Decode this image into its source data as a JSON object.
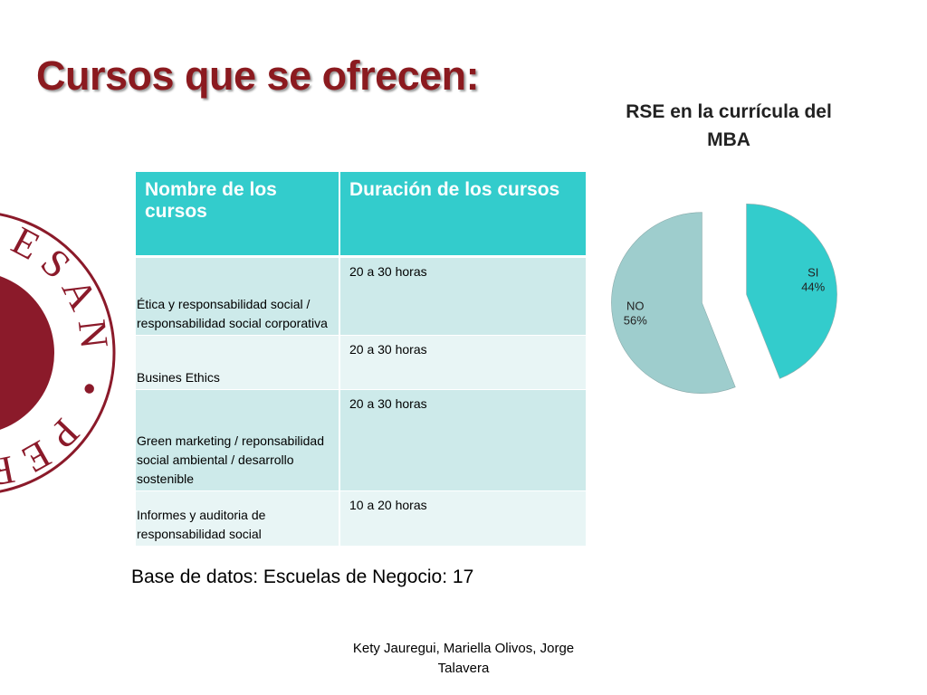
{
  "title": "Cursos que se ofrecen:",
  "logo_text": "ESAN • PERÚ •",
  "table": {
    "header": [
      "Nombre de los cursos",
      "Duración de los cursos"
    ],
    "rows": [
      [
        "Ética y responsabilidad social / responsabilidad social corporativa",
        "20 a 30 horas"
      ],
      [
        "Busines Ethics",
        "20 a 30 horas"
      ],
      [
        "Green marketing / reponsabilidad social ambiental / desarrollo sostenible",
        "20 a 30 horas"
      ],
      [
        "Informes y auditoria de responsabilidad social",
        "10 a 20 horas"
      ]
    ]
  },
  "chart_data": {
    "type": "pie",
    "title": "RSE en la currícula del MBA",
    "categories": [
      "SI",
      "NO"
    ],
    "values": [
      44,
      56
    ],
    "value_labels": [
      "44%",
      "56%"
    ],
    "colors": [
      "#33cccc",
      "#9ecdcd"
    ],
    "exploded": true
  },
  "note": "Base de datos:  Escuelas de Negocio: 17",
  "authors": "Kety Jauregui, Mariella Olivos, Jorge Talavera"
}
